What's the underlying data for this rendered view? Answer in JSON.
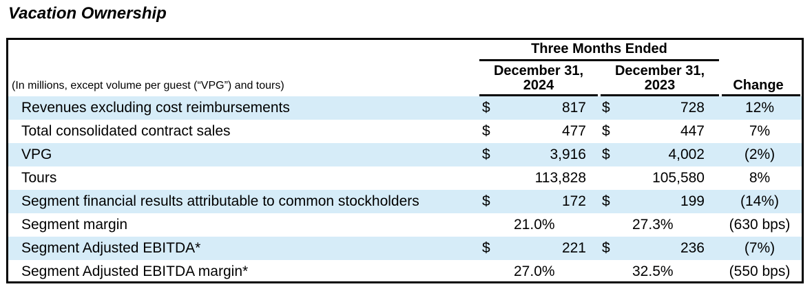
{
  "heading": "Vacation Ownership",
  "table": {
    "units_note": "(In millions, except volume per guest (“VPG”) and tours)",
    "group_header": "Three Months Ended",
    "col1_line1": "December 31,",
    "col1_line2": "2024",
    "col2_line1": "December 31,",
    "col2_line2": "2023",
    "change_header": "Change",
    "rows": [
      {
        "label": "Revenues excluding cost reimbursements",
        "d1": "$",
        "v1": "817",
        "d2": "$",
        "v2": "728",
        "change": "12%"
      },
      {
        "label": "Total consolidated contract sales",
        "d1": "$",
        "v1": "477",
        "d2": "$",
        "v2": "447",
        "change": "7%"
      },
      {
        "label": "VPG",
        "d1": "$",
        "v1": "3,916",
        "d2": "$",
        "v2": "4,002",
        "change": "(2%)"
      },
      {
        "label": "Tours",
        "v1": "113,828",
        "v2": "105,580",
        "change": "8%"
      },
      {
        "label": "Segment financial results attributable to common stockholders",
        "d1": "$",
        "v1": "172",
        "d2": "$",
        "v2": "199",
        "change": "(14%)"
      },
      {
        "label": "Segment margin",
        "p1": "21.0%",
        "p2": "27.3%",
        "change": "(630 bps)"
      },
      {
        "label": "Segment Adjusted EBITDA*",
        "d1": "$",
        "v1": "221",
        "d2": "$",
        "v2": "236",
        "change": "(7%)"
      },
      {
        "label": "Segment Adjusted EBITDA margin*",
        "p1": "27.0%",
        "p2": "32.5%",
        "change": "(550 bps)"
      }
    ]
  }
}
